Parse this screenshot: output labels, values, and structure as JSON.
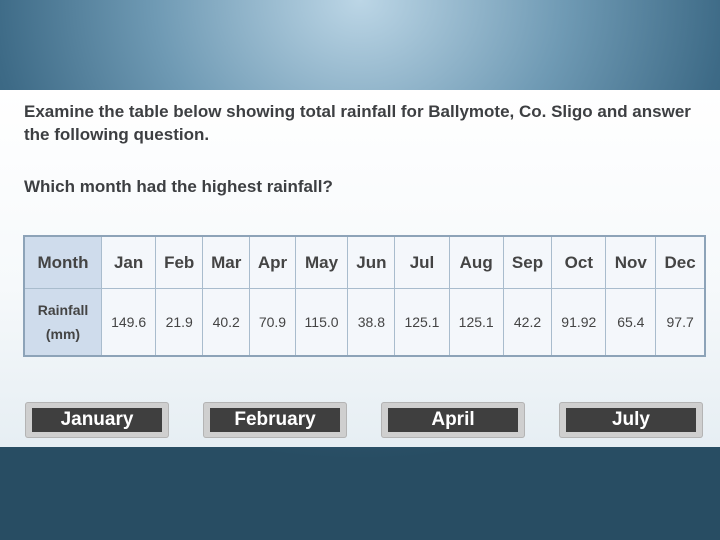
{
  "question": {
    "intro": "Examine the table below showing total rainfall for Ballymote, Co. Sligo and answer the following question.",
    "prompt": "Which month had the highest rainfall?"
  },
  "table": {
    "row_header_month": "Month",
    "row_header_rainfall": "Rainfall (mm)",
    "months": [
      "Jan",
      "Feb",
      "Mar",
      "Apr",
      "May",
      "Jun",
      "Jul",
      "Aug",
      "Sep",
      "Oct",
      "Nov",
      "Dec"
    ],
    "rainfall": [
      "149.6",
      "21.9",
      "40.2",
      "70.9",
      "115.0",
      "38.8",
      "125.1",
      "125.1",
      "42.2",
      "91.92",
      "65.4",
      "97.7"
    ]
  },
  "answers": [
    "January",
    "February",
    "April",
    "July"
  ],
  "colors": {
    "header_cell": "#cfdcec",
    "cell": "#f4f7fb",
    "button": "#3f3f3f",
    "button_frame": "#cfcfcf"
  }
}
